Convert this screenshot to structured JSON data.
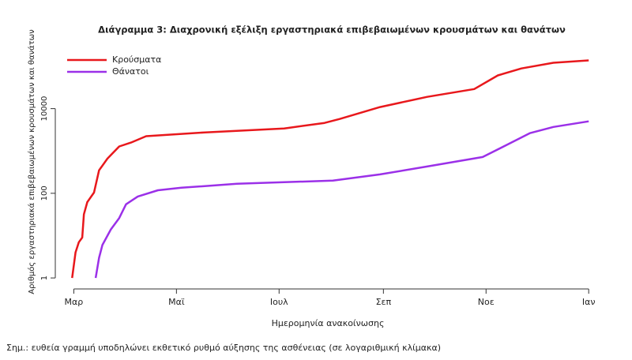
{
  "chart_data": {
    "type": "line",
    "title": "Διάγραμμα 3: Διαχρονική εξέλιξη εργαστηριακά επιβεβαιωμένων κρουσμάτων και θανάτων",
    "x_label": "Ημερομηνία ανακοίνωσης",
    "y_label": "Αριθμός εργαστηριακά επιβεβαιωμένων κρουσμάτων και θανάτων",
    "note": "Σημ.: ευθεία γραμμή υποδηλώνει εκθετικό ρυθμό αύξησης της ασθένειας (σε λογαριθμική κλίμακα)",
    "log_y": true,
    "legend": "top-left",
    "xlim": [
      -11,
      320
    ],
    "xticks": [
      {
        "value": 0,
        "label": "Μαρ"
      },
      {
        "value": 61,
        "label": "Μαϊ"
      },
      {
        "value": 122,
        "label": "Ιουλ"
      },
      {
        "value": 184,
        "label": "Σεπ"
      },
      {
        "value": 245,
        "label": "Νοε"
      },
      {
        "value": 306,
        "label": "Ιαν"
      }
    ],
    "ylim": [
      0.55,
      280000
    ],
    "yticks": [
      1,
      100,
      10000
    ],
    "series": [
      {
        "name": "Κρούσματα",
        "color": "#e8181c",
        "x": [
          -1,
          1,
          3,
          5,
          6,
          8,
          12,
          15,
          20,
          27,
          34,
          43,
          78,
          125,
          149,
          158,
          182,
          210,
          238,
          252,
          266,
          285,
          306
        ],
        "values": [
          1,
          4,
          7,
          9,
          32,
          62,
          104,
          350,
          660,
          1280,
          1580,
          2230,
          2750,
          3400,
          4600,
          5700,
          10900,
          19000,
          29000,
          61000,
          89000,
          121000,
          138000
        ]
      },
      {
        "name": "Θάνατοι",
        "color": "#9b30e8",
        "x": [
          13,
          15,
          17,
          22,
          27,
          31,
          38,
          50,
          64,
          97,
          125,
          154,
          182,
          210,
          243,
          257,
          271,
          285,
          306
        ],
        "values": [
          1,
          3,
          6,
          14,
          26,
          55,
          84,
          118,
          135,
          168,
          183,
          200,
          280,
          430,
          720,
          1370,
          2630,
          3700,
          5000
        ]
      }
    ]
  }
}
